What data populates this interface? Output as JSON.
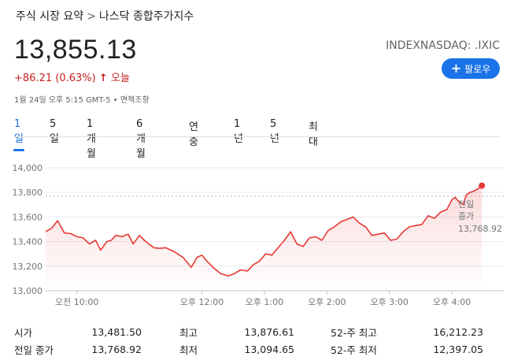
{
  "breadcrumb": {
    "parent": "주식 시장 요약",
    "separator": ">",
    "current": "나스닥 종합주가지수"
  },
  "quote": {
    "price": "13,855.13",
    "change": "+86.21 (0.63%)",
    "change_direction_icon": "arrow-up-icon",
    "change_arrow": "↑",
    "period": "오늘",
    "ticker": "INDEXNASDAQ: .IXIC",
    "timestamp": "1월 24일 오후 5:15 GMT-5 • 면책조항"
  },
  "follow": {
    "label": "팔로우",
    "icon": "+"
  },
  "tabs": [
    "1일",
    "5일",
    "1개월",
    "6개월",
    "연중",
    "1년",
    "5년",
    "최대"
  ],
  "active_tab": 0,
  "colors": {
    "line": "#e53935",
    "accent": "#1a73e8",
    "negative": "#c5221f"
  },
  "chart_data": {
    "type": "area",
    "x_tick_labels": [
      "오전 10:00",
      "오후 12:00",
      "오후 1:00",
      "오후 2:00",
      "오후 3:00",
      "오후 4:00"
    ],
    "x_tick_hours": [
      10,
      12,
      13,
      14,
      15,
      16
    ],
    "x_range_hours": [
      9.5,
      16.83
    ],
    "y_tick_labels": [
      "14,000",
      "13,800",
      "13,600",
      "13,400",
      "13,200",
      "13,000"
    ],
    "y_ticks": [
      14000,
      13800,
      13600,
      13400,
      13200,
      13000
    ],
    "ylim": [
      13000,
      14000
    ],
    "reference_line": {
      "label_line1": "전일",
      "label_line2": "종가",
      "value": 13768.92,
      "value_label": "13,768.92"
    },
    "series": [
      {
        "x_hours": [
          9.5,
          9.6,
          9.69,
          9.8,
          9.9,
          10.0,
          10.1,
          10.2,
          10.3,
          10.38,
          10.48,
          10.55,
          10.62,
          10.72,
          10.82,
          10.9,
          11.0,
          11.08,
          11.15,
          11.23,
          11.32,
          11.42,
          11.55,
          11.7,
          11.83,
          11.92,
          12.0,
          12.08,
          12.2,
          12.3,
          12.42,
          12.52,
          12.62,
          12.73,
          12.82,
          12.92,
          13.02,
          13.12,
          13.22,
          13.32,
          13.42,
          13.52,
          13.62,
          13.72,
          13.82,
          13.92,
          14.02,
          14.12,
          14.22,
          14.32,
          14.42,
          14.52,
          14.62,
          14.72,
          14.82,
          14.92,
          15.02,
          15.12,
          15.22,
          15.32,
          15.42,
          15.52,
          15.62,
          15.72,
          15.82,
          15.92
        ],
        "values": [
          13480,
          13510,
          13570,
          13470,
          13465,
          13440,
          13430,
          13380,
          13410,
          13330,
          13400,
          13410,
          13450,
          13440,
          13460,
          13380,
          13450,
          13410,
          13380,
          13350,
          13345,
          13350,
          13320,
          13270,
          13190,
          13270,
          13290,
          13240,
          13180,
          13140,
          13120,
          13140,
          13170,
          13160,
          13210,
          13240,
          13300,
          13290,
          13350,
          13410,
          13480,
          13380,
          13360,
          13430,
          13440,
          13410,
          13490,
          13520,
          13560,
          13580,
          13600,
          13550,
          13520,
          13450,
          13460,
          13470,
          13410,
          13420,
          13480,
          13520,
          13530,
          13540,
          13610,
          13590,
          13640,
          13660
        ]
      },
      {
        "x_hours": [
          16.0,
          16.05,
          16.12,
          16.18,
          16.23,
          16.29,
          16.35,
          16.42,
          16.48
        ],
        "values": [
          13740,
          13760,
          13720,
          13700,
          13780,
          13800,
          13810,
          13830,
          13855
        ]
      }
    ]
  },
  "stats": [
    [
      {
        "label": "시가",
        "value": "13,481.50"
      },
      {
        "label": "최고",
        "value": "13,876.61"
      },
      {
        "label": "52-주 최고",
        "value": "16,212.23"
      }
    ],
    [
      {
        "label": "전일 종가",
        "value": "13,768.92"
      },
      {
        "label": "최저",
        "value": "13,094.65"
      },
      {
        "label": "52-주 최저",
        "value": "12,397.05"
      }
    ]
  ]
}
